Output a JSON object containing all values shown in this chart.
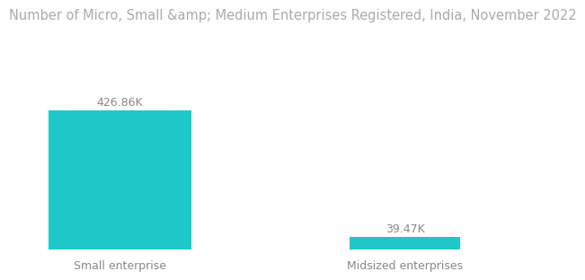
{
  "title": "Number of Micro, Small &amp; Medium Enterprises Registered, India, November 2022",
  "categories": [
    "Small enterprise",
    "Midsized enterprises"
  ],
  "values": [
    426.86,
    39.47
  ],
  "labels": [
    "426.86K",
    "39.47K"
  ],
  "bar_color": "#1EC8C8",
  "background_color": "#ffffff",
  "title_fontsize": 10.5,
  "label_fontsize": 9,
  "tick_fontsize": 9,
  "ylim": [
    0,
    500
  ]
}
